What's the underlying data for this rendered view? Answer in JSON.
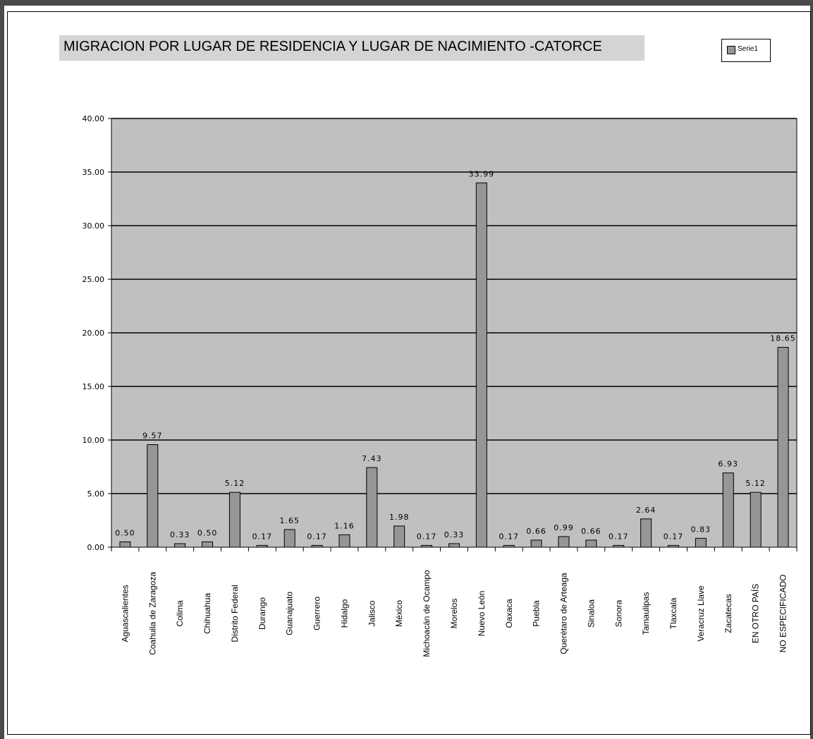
{
  "colors": {
    "plot_background": "#c0c0c0",
    "bar_fill": "#969696",
    "gridline": "#000000",
    "title_background": "#d4d4d4",
    "frame_border": "#4a4a4a"
  },
  "chart_data": {
    "type": "bar",
    "title": "MIGRACION POR LUGAR DE RESIDENCIA   Y  LUGAR DE NACIMIENTO -CATORCE",
    "xlabel": "",
    "ylabel": "",
    "ylim": [
      0,
      40
    ],
    "yticks": [
      "0.00",
      "5.00",
      "10.00",
      "15.00",
      "20.00",
      "25.00",
      "30.00",
      "35.00",
      "40.00"
    ],
    "ytick_values": [
      0,
      5,
      10,
      15,
      20,
      25,
      30,
      35,
      40
    ],
    "grid": true,
    "legend_position": "top-right",
    "categories": [
      "Aguascalientes",
      "Coahuila de Zaragoza",
      "Colima",
      "Chihuahua",
      "Distrito Federal",
      "Durango",
      "Guanajuato",
      "Guerrero",
      "Hidalgo",
      "Jalisco",
      "México",
      "Michoacán de Ocampo",
      "Morelos",
      "Nuevo León",
      "Oaxaca",
      "Puebla",
      "Querétaro de Arteaga",
      "Sinaloa",
      "Sonora",
      "Tamaulipas",
      "Tlaxcala",
      "Veracruz Llave",
      "Zacatecas",
      "EN OTRO PAÍS",
      "NO ESPECIFICADO"
    ],
    "series": [
      {
        "name": "Serie1",
        "values": [
          0.5,
          9.57,
          0.33,
          0.5,
          5.12,
          0.17,
          1.65,
          0.17,
          1.16,
          7.43,
          1.98,
          0.17,
          0.33,
          33.99,
          0.17,
          0.66,
          0.99,
          0.66,
          0.17,
          2.64,
          0.17,
          0.83,
          6.93,
          5.12,
          18.65
        ],
        "labels": [
          "0.50",
          "9.57",
          "0.33",
          "0.50",
          "5.12",
          "0.17",
          "1.65",
          "0.17",
          "1.16",
          "7.43",
          "1.98",
          "0.17",
          "0.33",
          "33.99",
          "0.17",
          "0.66",
          "0.99",
          "0.66",
          "0.17",
          "2.64",
          "0.17",
          "0.83",
          "6.93",
          "5.12",
          "18.65"
        ]
      }
    ]
  }
}
